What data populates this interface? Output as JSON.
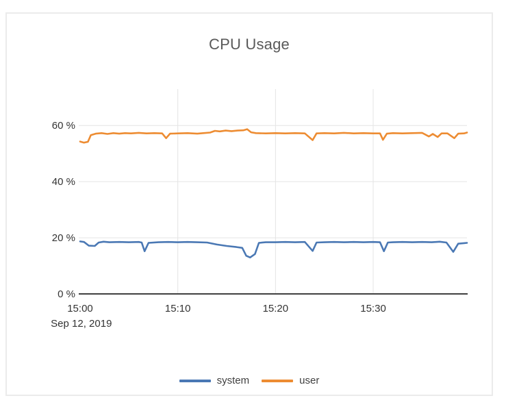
{
  "chart_data": {
    "type": "line",
    "title": "CPU Usage",
    "xlabel": "",
    "ylabel": "",
    "date_label": "Sep 12, 2019",
    "xlim_minutes_after_1500": [
      0,
      39.6
    ],
    "ylim_percent": [
      0,
      73
    ],
    "grid": true,
    "legend_position": "bottom",
    "x_ticks": [
      {
        "t": 0,
        "label": "15:00"
      },
      {
        "t": 10,
        "label": "15:10"
      },
      {
        "t": 20,
        "label": "15:20"
      },
      {
        "t": 30,
        "label": "15:30"
      }
    ],
    "y_ticks": [
      {
        "v": 0,
        "label": "0 %"
      },
      {
        "v": 20,
        "label": "20 %"
      },
      {
        "v": 40,
        "label": "40 %"
      },
      {
        "v": 60,
        "label": "60 %"
      }
    ],
    "colors": {
      "grid": "#e4e4e4",
      "axis": "#404040",
      "tick_text": "#333333",
      "title_text": "#595959"
    },
    "series": [
      {
        "name": "system",
        "color": "#4a78b4",
        "points": [
          [
            0,
            18.7
          ],
          [
            0.4,
            18.5
          ],
          [
            0.9,
            17.2
          ],
          [
            1.5,
            17.1
          ],
          [
            1.9,
            18.3
          ],
          [
            2.4,
            18.6
          ],
          [
            3,
            18.4
          ],
          [
            4,
            18.5
          ],
          [
            5,
            18.4
          ],
          [
            6,
            18.5
          ],
          [
            6.3,
            18.3
          ],
          [
            6.6,
            15.2
          ],
          [
            7,
            18.2
          ],
          [
            8,
            18.4
          ],
          [
            9,
            18.5
          ],
          [
            10,
            18.4
          ],
          [
            11,
            18.5
          ],
          [
            12,
            18.4
          ],
          [
            13,
            18.3
          ],
          [
            14,
            17.6
          ],
          [
            15,
            17.1
          ],
          [
            16,
            16.7
          ],
          [
            16.6,
            16.4
          ],
          [
            17,
            13.6
          ],
          [
            17.4,
            13.0
          ],
          [
            17.9,
            14.2
          ],
          [
            18.3,
            18.2
          ],
          [
            19,
            18.4
          ],
          [
            20,
            18.4
          ],
          [
            21,
            18.5
          ],
          [
            22,
            18.4
          ],
          [
            23,
            18.5
          ],
          [
            23.8,
            15.3
          ],
          [
            24.2,
            18.3
          ],
          [
            25,
            18.4
          ],
          [
            26,
            18.5
          ],
          [
            27,
            18.4
          ],
          [
            28,
            18.5
          ],
          [
            29,
            18.4
          ],
          [
            30,
            18.5
          ],
          [
            30.7,
            18.4
          ],
          [
            31.1,
            15.2
          ],
          [
            31.5,
            18.3
          ],
          [
            32,
            18.4
          ],
          [
            33,
            18.5
          ],
          [
            34,
            18.4
          ],
          [
            35,
            18.5
          ],
          [
            36,
            18.4
          ],
          [
            36.8,
            18.6
          ],
          [
            37.5,
            18.3
          ],
          [
            38.2,
            15.0
          ],
          [
            38.7,
            17.9
          ],
          [
            39.3,
            18.1
          ],
          [
            39.6,
            18.2
          ]
        ]
      },
      {
        "name": "user",
        "color": "#ed8c32",
        "points": [
          [
            0,
            54.3
          ],
          [
            0.4,
            53.9
          ],
          [
            0.8,
            54.2
          ],
          [
            1.1,
            56.6
          ],
          [
            1.6,
            57.1
          ],
          [
            2.2,
            57.3
          ],
          [
            2.8,
            57.0
          ],
          [
            3.4,
            57.3
          ],
          [
            4,
            57.1
          ],
          [
            4.6,
            57.3
          ],
          [
            5.2,
            57.2
          ],
          [
            6,
            57.4
          ],
          [
            6.8,
            57.2
          ],
          [
            7.6,
            57.3
          ],
          [
            8.4,
            57.2
          ],
          [
            8.8,
            55.5
          ],
          [
            9.2,
            57.1
          ],
          [
            10,
            57.2
          ],
          [
            11,
            57.3
          ],
          [
            12,
            57.1
          ],
          [
            12.6,
            57.3
          ],
          [
            13.3,
            57.5
          ],
          [
            13.8,
            58.1
          ],
          [
            14.3,
            57.9
          ],
          [
            14.9,
            58.2
          ],
          [
            15.5,
            58.0
          ],
          [
            16.1,
            58.2
          ],
          [
            16.7,
            58.3
          ],
          [
            17.1,
            58.7
          ],
          [
            17.5,
            57.6
          ],
          [
            18,
            57.3
          ],
          [
            19,
            57.2
          ],
          [
            20,
            57.3
          ],
          [
            21,
            57.2
          ],
          [
            22,
            57.3
          ],
          [
            23,
            57.2
          ],
          [
            23.8,
            54.8
          ],
          [
            24.2,
            57.2
          ],
          [
            25,
            57.3
          ],
          [
            26,
            57.2
          ],
          [
            27,
            57.4
          ],
          [
            28,
            57.2
          ],
          [
            29,
            57.3
          ],
          [
            30,
            57.2
          ],
          [
            30.7,
            57.2
          ],
          [
            31,
            54.9
          ],
          [
            31.4,
            57.1
          ],
          [
            32,
            57.3
          ],
          [
            33,
            57.2
          ],
          [
            34,
            57.3
          ],
          [
            35,
            57.4
          ],
          [
            35.7,
            56.1
          ],
          [
            36.1,
            57.0
          ],
          [
            36.6,
            55.9
          ],
          [
            37,
            57.2
          ],
          [
            37.6,
            57.2
          ],
          [
            38.3,
            55.5
          ],
          [
            38.7,
            57.1
          ],
          [
            39.3,
            57.2
          ],
          [
            39.6,
            57.5
          ]
        ]
      }
    ]
  }
}
